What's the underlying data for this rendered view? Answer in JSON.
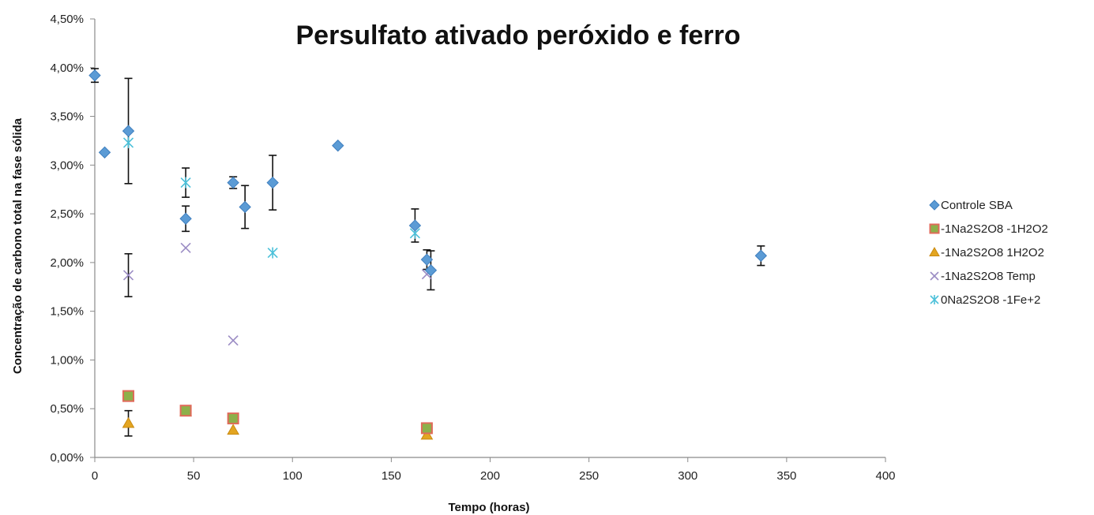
{
  "chart_data": {
    "type": "scatter",
    "title": "Persulfato ativado peróxido e ferro",
    "xlabel": "Tempo (horas)",
    "ylabel": "Concentração de carbono total na fase sólida",
    "xlim": [
      0,
      400
    ],
    "ylim": [
      0,
      0.045
    ],
    "x_ticks": [
      0,
      50,
      100,
      150,
      200,
      250,
      300,
      350,
      400
    ],
    "x_tick_labels": [
      "0",
      "50",
      "100",
      "150",
      "200",
      "250",
      "300",
      "350",
      "400"
    ],
    "y_ticks": [
      0,
      0.005,
      0.01,
      0.015,
      0.02,
      0.025,
      0.03,
      0.035,
      0.04,
      0.045
    ],
    "y_tick_labels": [
      "0,00%",
      "0,50%",
      "1,00%",
      "1,50%",
      "2,00%",
      "2,50%",
      "3,00%",
      "3,50%",
      "4,00%",
      "4,50%"
    ],
    "grid": false,
    "legend_position": "right",
    "series": [
      {
        "name": "Controle SBA",
        "marker": "diamond",
        "color": "#5B9BD5",
        "points": [
          {
            "x": 0,
            "y": 0.0392,
            "err": 0.0007
          },
          {
            "x": 5,
            "y": 0.0313
          },
          {
            "x": 17,
            "y": 0.0335,
            "err": 0.0054
          },
          {
            "x": 46,
            "y": 0.0245,
            "err": 0.0013
          },
          {
            "x": 70,
            "y": 0.0282,
            "err": 0.0006
          },
          {
            "x": 76,
            "y": 0.0257,
            "err": 0.0022
          },
          {
            "x": 90,
            "y": 0.0282,
            "err": 0.0028
          },
          {
            "x": 123,
            "y": 0.032
          },
          {
            "x": 162,
            "y": 0.0238,
            "err": 0.0017
          },
          {
            "x": 168,
            "y": 0.0203,
            "err": 0.001
          },
          {
            "x": 170,
            "y": 0.0192,
            "err": 0.002
          },
          {
            "x": 337,
            "y": 0.0207,
            "err": 0.001
          }
        ]
      },
      {
        "name": "-1Na2S2O8 -1H2O2",
        "marker": "square",
        "color": "#8DB04A",
        "stroke": "#E06A5A",
        "points": [
          {
            "x": 17,
            "y": 0.0063
          },
          {
            "x": 46,
            "y": 0.0048
          },
          {
            "x": 70,
            "y": 0.004
          },
          {
            "x": 168,
            "y": 0.003
          }
        ]
      },
      {
        "name": "-1Na2S2O8 1H2O2",
        "marker": "triangle",
        "color": "#E3A521",
        "points": [
          {
            "x": 17,
            "y": 0.0035,
            "err": 0.0013
          },
          {
            "x": 46,
            "y": 0.0047
          },
          {
            "x": 70,
            "y": 0.0028
          },
          {
            "x": 168,
            "y": 0.0023
          }
        ]
      },
      {
        "name": "-1Na2S2O8 Temp",
        "marker": "x",
        "color": "#9B8CC4",
        "points": [
          {
            "x": 17,
            "y": 0.0187,
            "err": 0.0022
          },
          {
            "x": 46,
            "y": 0.0215
          },
          {
            "x": 70,
            "y": 0.012
          },
          {
            "x": 168,
            "y": 0.0188
          }
        ]
      },
      {
        "name": "0Na2S2O8 -1Fe+2",
        "marker": "asterisk",
        "color": "#4BC0D9",
        "points": [
          {
            "x": 17,
            "y": 0.0323
          },
          {
            "x": 46,
            "y": 0.0282,
            "err": 0.0015
          },
          {
            "x": 90,
            "y": 0.021
          },
          {
            "x": 162,
            "y": 0.023
          }
        ]
      }
    ]
  }
}
